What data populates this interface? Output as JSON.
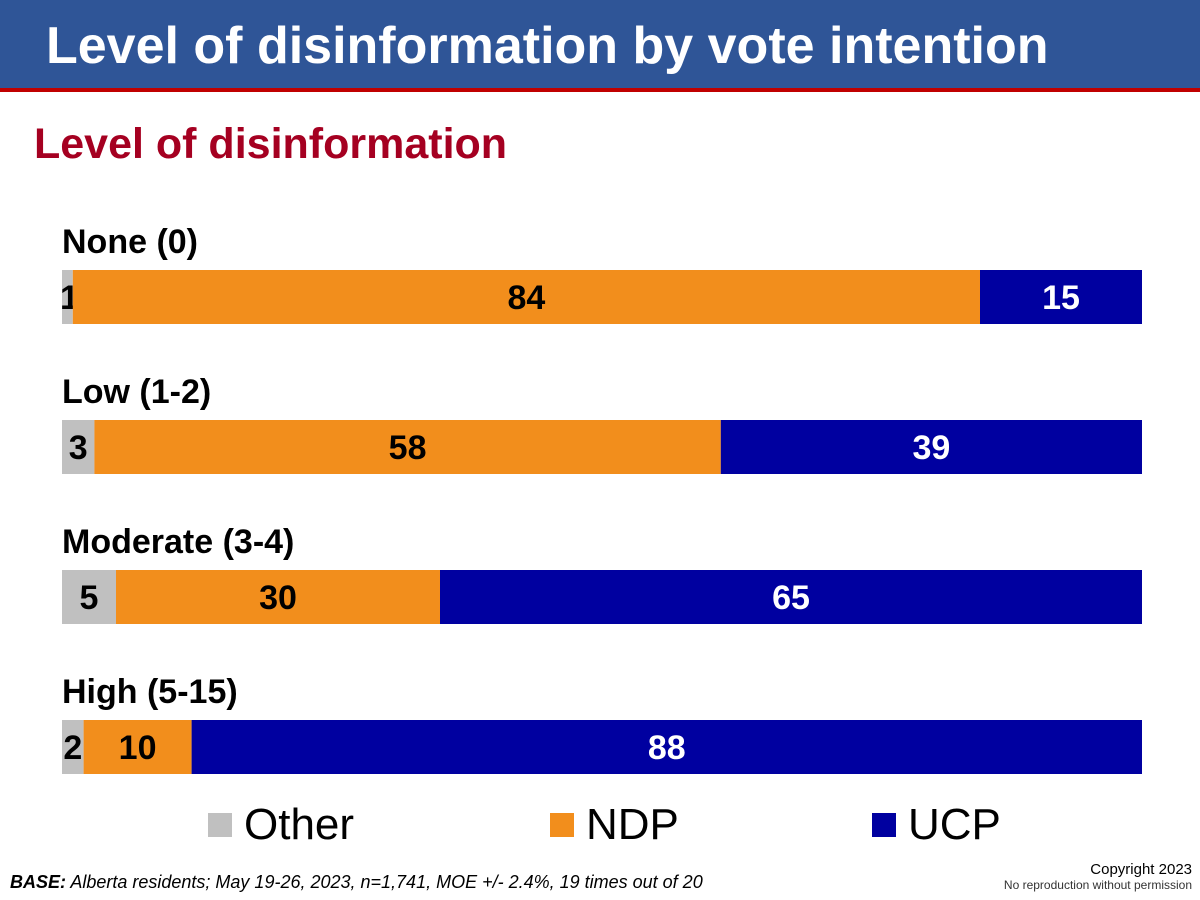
{
  "header": {
    "title": "Level of disinformation by vote intention"
  },
  "chart_data": {
    "type": "bar",
    "orientation": "horizontal",
    "stacked": true,
    "title": "Level of disinformation",
    "categories": [
      "None (0)",
      "Low (1-2)",
      "Moderate (3-4)",
      "High (5-15)"
    ],
    "series": [
      {
        "name": "Other",
        "values": [
          1,
          3,
          5,
          2
        ],
        "color": "#c0c0c0",
        "label_color": "#000000"
      },
      {
        "name": "NDP",
        "values": [
          84,
          58,
          30,
          10
        ],
        "color": "#f28e1c",
        "label_color": "#000000"
      },
      {
        "name": "UCP",
        "values": [
          15,
          39,
          65,
          88
        ],
        "color": "#0000a0",
        "label_color": "#ffffff"
      }
    ],
    "xlim": [
      0,
      100
    ],
    "grid": false,
    "legend_position": "bottom"
  },
  "legend": [
    {
      "label": "Other",
      "color": "#c0c0c0"
    },
    {
      "label": "NDP",
      "color": "#f28e1c"
    },
    {
      "label": "UCP",
      "color": "#0000a0"
    }
  ],
  "footer": {
    "base_label": "BASE:",
    "base_text": " Alberta residents; May 19-26, 2023, n=1,741,  MOE +/- 2.4%, 19 times out of 20",
    "copyright": "Copyright 2023",
    "notice": "No reproduction without permission"
  },
  "colors": {
    "banner": "#2f5597",
    "banner_rule": "#c00000",
    "subtitle": "#a50021"
  }
}
